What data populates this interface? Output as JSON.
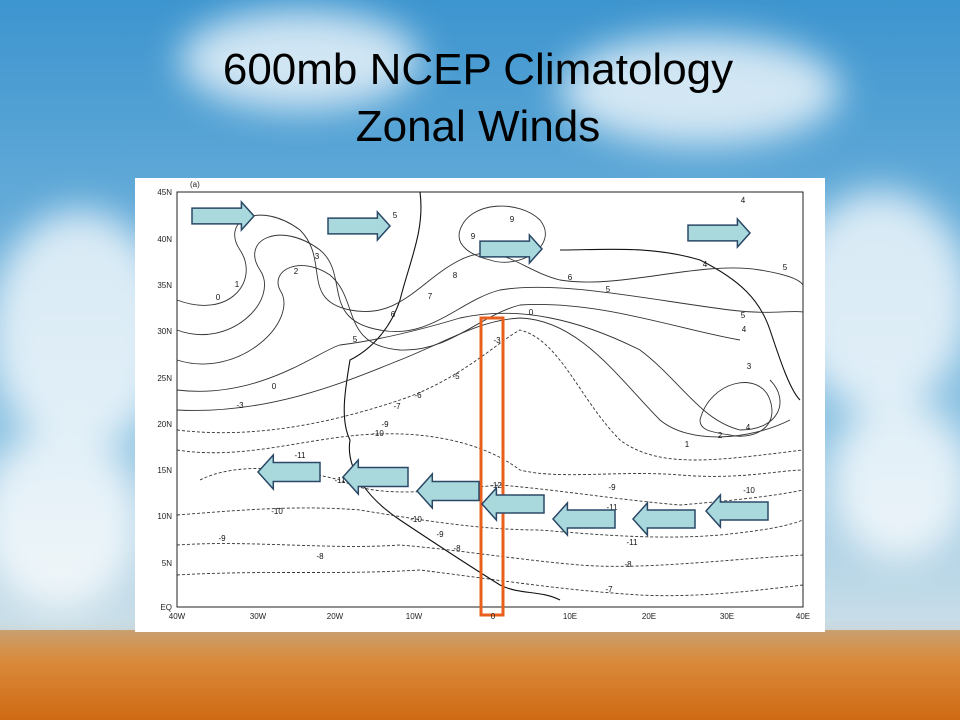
{
  "slide": {
    "title_lines": [
      "600mb NCEP Climatology",
      "Zonal Winds"
    ]
  },
  "map": {
    "panel_label": "(a)",
    "latitude_labels": [
      "45N",
      "40N",
      "35N",
      "30N",
      "25N",
      "20N",
      "15N",
      "10N",
      "5N",
      "EQ"
    ],
    "longitude_labels": [
      "40W",
      "30W",
      "20W",
      "10W",
      "0",
      "10E",
      "20E",
      "30E",
      "40E"
    ],
    "contour_labels": [
      "5",
      "9",
      "9",
      "8",
      "7",
      "6",
      "5",
      "4",
      "4",
      "5",
      "3",
      "2",
      "1",
      "0",
      "6",
      "5",
      "5",
      "4",
      "3",
      "4",
      "2",
      "1",
      "0",
      "-3",
      "-5",
      "-6",
      "-7",
      "-9",
      "-10",
      "-11",
      "-11",
      "-12",
      "-10",
      "-9",
      "-8",
      "-10",
      "-9",
      "-8",
      "-11",
      "-11",
      "-10",
      "-9",
      "-8",
      "-7",
      "-3",
      "0"
    ]
  }
}
